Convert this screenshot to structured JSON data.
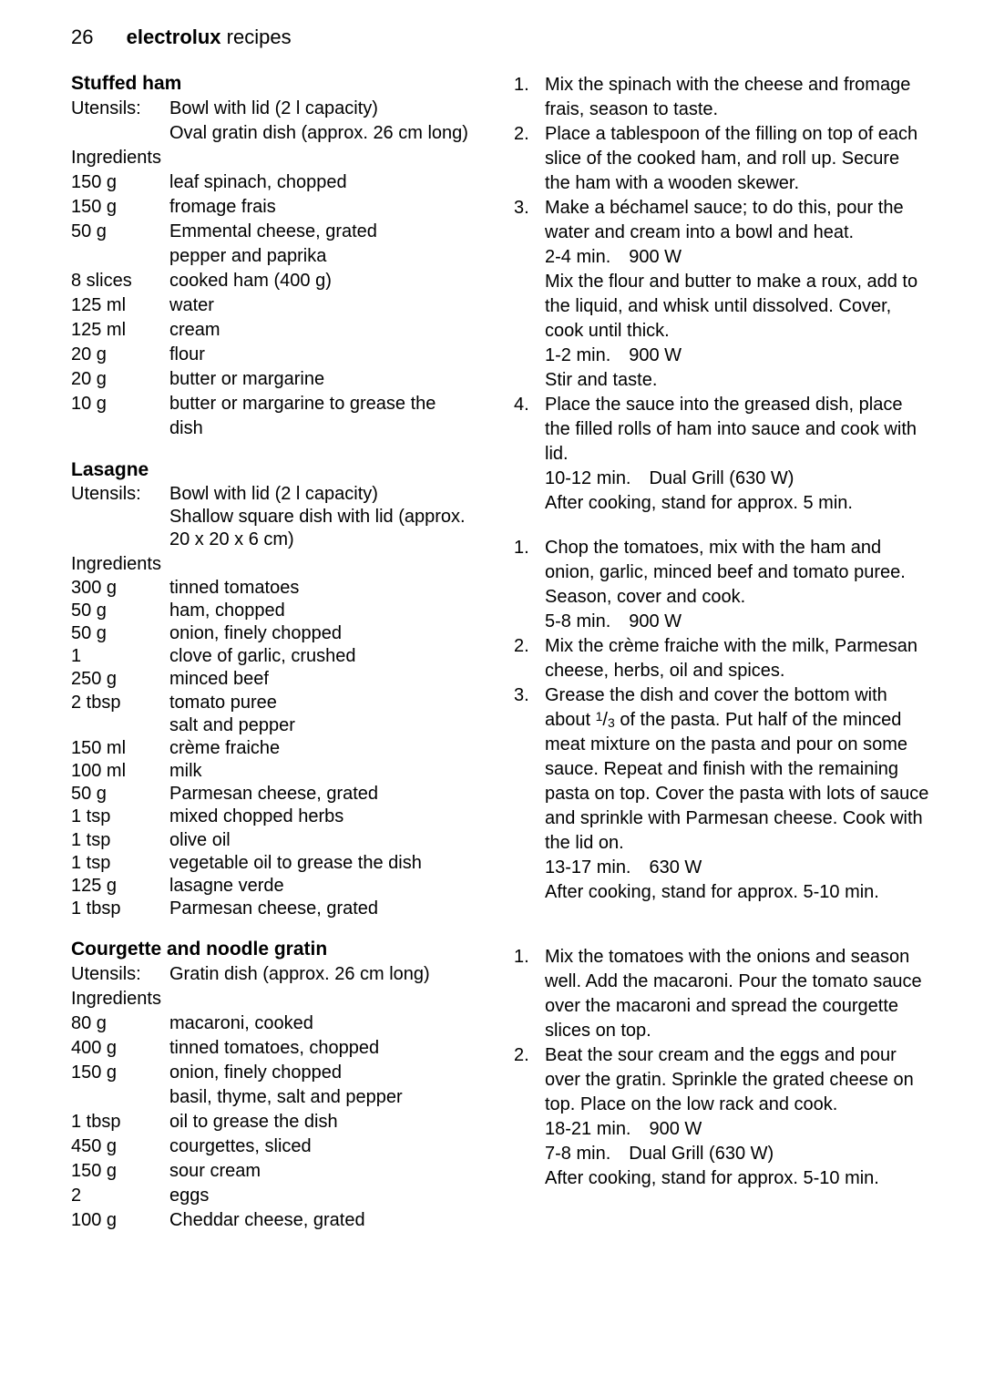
{
  "header": {
    "pagenum": "26",
    "brand": "electrolux",
    "section": "recipes"
  },
  "recipe1": {
    "title": "Stuffed ham",
    "utensils_label": "Utensils:",
    "utensils": "Bowl with lid (2 l capacity)\nOval gratin dish (approx. 26 cm long)",
    "ing_label": "Ingredients",
    "ingredients": [
      [
        "150 g",
        "leaf spinach, chopped"
      ],
      [
        "150 g",
        "fromage frais"
      ],
      [
        "50 g",
        "Emmental cheese, grated"
      ],
      [
        "",
        "pepper and paprika"
      ],
      [
        "8 slices",
        "cooked ham (400 g)"
      ],
      [
        "125 ml",
        "water"
      ],
      [
        "125 ml",
        "cream"
      ],
      [
        "20 g",
        "flour"
      ],
      [
        "20 g",
        "butter or margarine"
      ],
      [
        "10 g",
        "butter or margarine to grease the dish"
      ]
    ],
    "steps": [
      "Mix the spinach with the cheese and fromage frais, season to taste.",
      "Place a tablespoon of the filling on top of each slice of the cooked ham, and roll up. Secure the ham with a wooden skewer.",
      "Make a béchamel sauce; to do this, pour the water and cream into a bowl and heat.\n2-4 min. 900 W\nMix the flour and butter to make a roux, add to the liquid, and whisk until dissolved. Cover, cook until thick.\n1-2 min. 900 W\nStir and taste.",
      "Place the sauce into the greased dish, place the filled rolls of ham into sauce and cook with lid.\n10-12 min. Dual Grill (630 W)\nAfter cooking, stand for approx. 5 min."
    ]
  },
  "recipe2": {
    "title": "Lasagne",
    "utensils_label": "Utensils:",
    "utensils": "Bowl with lid (2 l capacity)\nShallow square dish with lid (approx. 20 x 20 x 6 cm)",
    "ing_label": "Ingredients",
    "ingredients": [
      [
        "300 g",
        "tinned tomatoes"
      ],
      [
        "50 g",
        "ham, chopped"
      ],
      [
        "50 g",
        "onion, finely chopped"
      ],
      [
        "1",
        "clove of garlic, crushed"
      ],
      [
        "250 g",
        "minced beef"
      ],
      [
        "2 tbsp",
        "tomato puree"
      ],
      [
        "",
        "salt and pepper"
      ],
      [
        "150 ml",
        "crème fraiche"
      ],
      [
        "100 ml",
        "milk"
      ],
      [
        "50 g",
        "Parmesan cheese, grated"
      ],
      [
        "1 tsp",
        "mixed chopped herbs"
      ],
      [
        "1 tsp",
        "olive oil"
      ],
      [
        "1 tsp",
        "vegetable oil to grease the dish"
      ],
      [
        "125 g",
        "lasagne verde"
      ],
      [
        "1 tbsp",
        "Parmesan cheese, grated"
      ]
    ],
    "steps": [
      "Chop the tomatoes, mix with the ham and onion, garlic, minced beef and tomato puree. Season, cover and cook.\n5-8 min. 900 W",
      "Mix the crème fraiche with the milk, Parmesan cheese, herbs, oil and spices.",
      "Grease the dish and cover the bottom with about {FRAC13} of the pasta. Put half of the minced meat mixture on the pasta and pour on some sauce. Repeat and finish with the remaining pasta on top. Cover the pasta with lots of sauce and sprinkle with Parmesan cheese. Cook with the lid on.\n13-17 min. 630 W\nAfter cooking, stand for approx. 5-10 min."
    ]
  },
  "recipe3": {
    "title": "Courgette and noodle gratin",
    "utensils_label": "Utensils:",
    "utensils": "Gratin dish (approx. 26 cm long)",
    "ing_label": "Ingredients",
    "ingredients": [
      [
        "80 g",
        "macaroni, cooked"
      ],
      [
        "400 g",
        "tinned tomatoes, chopped"
      ],
      [
        "150 g",
        "onion, finely chopped"
      ],
      [
        "",
        "basil, thyme, salt and pepper"
      ],
      [
        "1 tbsp",
        "oil to grease the dish"
      ],
      [
        "450 g",
        "courgettes, sliced"
      ],
      [
        "150 g",
        "sour cream"
      ],
      [
        "2",
        "eggs"
      ],
      [
        "100 g",
        "Cheddar cheese, grated"
      ]
    ],
    "steps": [
      "Mix the tomatoes with the onions and season well. Add the macaroni. Pour the tomato sauce over the macaroni and spread the courgette slices on top.",
      "Beat the sour cream and the eggs and pour over the gratin. Sprinkle the grated cheese on top. Place on the low rack and cook.\n18-21 min. 900 W\n7-8 min. Dual Grill (630 W)\nAfter cooking, stand for approx. 5-10 min."
    ]
  }
}
